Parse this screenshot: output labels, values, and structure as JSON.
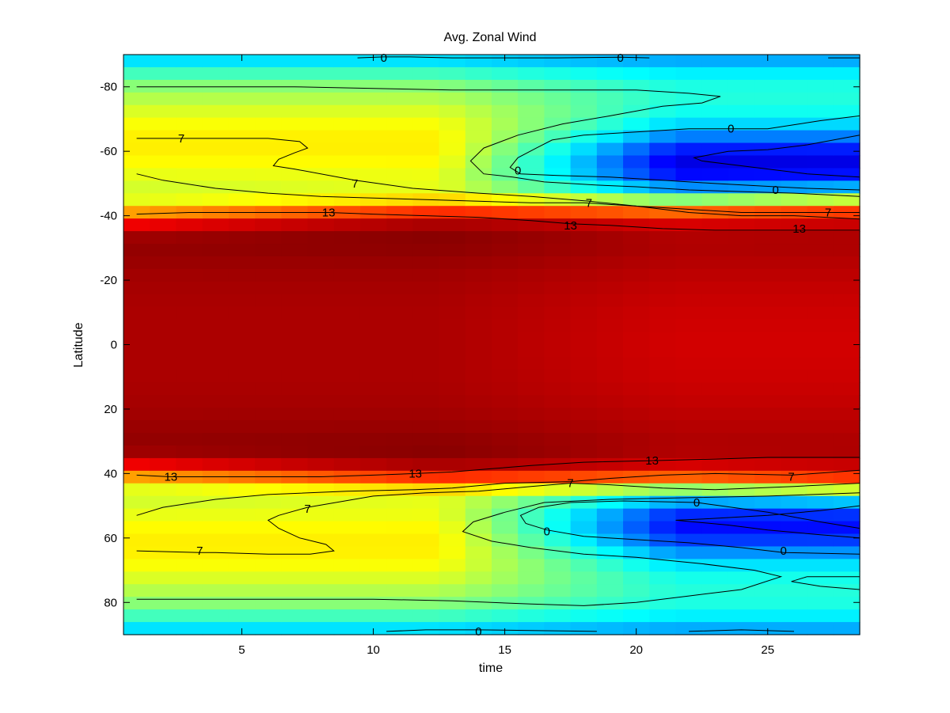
{
  "chart_data": {
    "type": "heatmap",
    "title": "Avg. Zonal Wind",
    "xlabel": "time",
    "ylabel": "Latitude",
    "xlim": [
      0.5,
      28.5
    ],
    "ylim": [
      -90,
      90
    ],
    "y_axis_reversed": true,
    "x_ticks": [
      5,
      10,
      15,
      20,
      25
    ],
    "y_ticks": [
      -80,
      -60,
      -40,
      -20,
      0,
      20,
      40,
      60,
      80
    ],
    "grid": false,
    "colormap": "jet",
    "color_range": [
      -12,
      20
    ],
    "contour_levels": [
      0,
      7,
      13
    ],
    "contour_labels": [
      {
        "text": "0",
        "x": 10.4,
        "y": -89
      },
      {
        "text": "0",
        "x": 19.4,
        "y": -89
      },
      {
        "text": "0",
        "x": 23.6,
        "y": -67
      },
      {
        "text": "0",
        "x": 15.5,
        "y": -54
      },
      {
        "text": "0",
        "x": 25.3,
        "y": -48
      },
      {
        "text": "7",
        "x": 2.7,
        "y": -64
      },
      {
        "text": "7",
        "x": 9.3,
        "y": -50
      },
      {
        "text": "7",
        "x": 18.2,
        "y": -44
      },
      {
        "text": "7",
        "x": 27.3,
        "y": -41
      },
      {
        "text": "13",
        "x": 8.3,
        "y": -41
      },
      {
        "text": "13",
        "x": 17.5,
        "y": -37
      },
      {
        "text": "13",
        "x": 26.2,
        "y": -36
      },
      {
        "text": "13",
        "x": 20.6,
        "y": 36
      },
      {
        "text": "13",
        "x": 11.6,
        "y": 40
      },
      {
        "text": "13",
        "x": 2.3,
        "y": 41
      },
      {
        "text": "7",
        "x": 25.9,
        "y": 41
      },
      {
        "text": "7",
        "x": 17.5,
        "y": 43
      },
      {
        "text": "7",
        "x": 7.5,
        "y": 51
      },
      {
        "text": "0",
        "x": 22.3,
        "y": 49
      },
      {
        "text": "0",
        "x": 16.6,
        "y": 58
      },
      {
        "text": "0",
        "x": 25.6,
        "y": 64
      },
      {
        "text": "7",
        "x": 3.4,
        "y": 64
      },
      {
        "text": "0",
        "x": 14.0,
        "y": 89
      }
    ],
    "contour_lines": [
      {
        "level": 0,
        "points": [
          [
            9.4,
            -89
          ],
          [
            10.4,
            -89.3
          ],
          [
            11.4,
            -89.3
          ],
          [
            13,
            -89
          ],
          [
            15,
            -89
          ],
          [
            17,
            -89
          ],
          [
            19.4,
            -89.2
          ],
          [
            20.5,
            -89
          ]
        ]
      },
      {
        "level": 0,
        "points": [
          [
            27.3,
            -89
          ],
          [
            28.5,
            -89
          ]
        ]
      },
      {
        "level": 7,
        "points": [
          [
            1,
            -80
          ],
          [
            4,
            -80
          ],
          [
            7,
            -80
          ],
          [
            10,
            -79.5
          ],
          [
            13,
            -79
          ],
          [
            16,
            -79
          ],
          [
            18,
            -79
          ],
          [
            20,
            -79
          ],
          [
            22,
            -78
          ],
          [
            23.2,
            -77
          ],
          [
            22.5,
            -75
          ],
          [
            21,
            -74
          ],
          [
            19,
            -71
          ],
          [
            17.2,
            -68.5
          ],
          [
            15.5,
            -65
          ],
          [
            14.2,
            -61
          ],
          [
            13.7,
            -57
          ],
          [
            14.2,
            -53
          ],
          [
            15.3,
            -52
          ],
          [
            16.5,
            -50.5
          ],
          [
            18.5,
            -49.5
          ],
          [
            20,
            -49
          ],
          [
            22,
            -48
          ],
          [
            24,
            -47.5
          ],
          [
            26,
            -47
          ],
          [
            28.5,
            -46
          ]
        ]
      },
      {
        "level": 0,
        "points": [
          [
            28.5,
            -71
          ],
          [
            27,
            -69.5
          ],
          [
            25,
            -67
          ],
          [
            23.6,
            -67
          ],
          [
            22,
            -67
          ],
          [
            20,
            -66
          ],
          [
            18,
            -65
          ],
          [
            16.8,
            -63.5
          ],
          [
            16.2,
            -61
          ],
          [
            15.5,
            -58
          ],
          [
            15.2,
            -55
          ],
          [
            15.6,
            -53
          ],
          [
            17,
            -52.5
          ],
          [
            19,
            -52
          ],
          [
            21,
            -51
          ],
          [
            23,
            -50
          ],
          [
            25.3,
            -49
          ],
          [
            26.5,
            -48.5
          ],
          [
            28.5,
            -48
          ]
        ]
      },
      {
        "level": 0,
        "points": [
          [
            28.5,
            -65
          ],
          [
            26.5,
            -62
          ],
          [
            25,
            -60.5
          ],
          [
            23.5,
            -60
          ],
          [
            22.2,
            -58
          ],
          [
            22.5,
            -57
          ],
          [
            23.5,
            -56
          ],
          [
            25,
            -54.5
          ],
          [
            26.5,
            -53
          ],
          [
            28.5,
            -52
          ]
        ]
      },
      {
        "level": 7,
        "points": [
          [
            1,
            -64
          ],
          [
            2.7,
            -64
          ],
          [
            4,
            -64
          ],
          [
            6,
            -64
          ],
          [
            7.2,
            -63
          ],
          [
            7.5,
            -61
          ],
          [
            7,
            -59.5
          ],
          [
            6.4,
            -57.5
          ],
          [
            6.2,
            -55.5
          ],
          [
            7,
            -54.5
          ],
          [
            9.3,
            -51
          ],
          [
            11.5,
            -48.5
          ],
          [
            14,
            -47
          ],
          [
            16,
            -46
          ],
          [
            18.2,
            -44.5
          ],
          [
            20,
            -43
          ],
          [
            22,
            -42
          ],
          [
            24,
            -41
          ],
          [
            27.3,
            -41
          ],
          [
            28.5,
            -41
          ]
        ]
      },
      {
        "level": 7,
        "points": [
          [
            1,
            -53
          ],
          [
            2,
            -51
          ],
          [
            4,
            -48.5
          ],
          [
            6,
            -47
          ],
          [
            8,
            -46
          ],
          [
            10,
            -45.5
          ],
          [
            12,
            -45
          ],
          [
            14,
            -44.5
          ],
          [
            16,
            -44
          ],
          [
            18,
            -44
          ],
          [
            20,
            -43
          ],
          [
            22,
            -41
          ],
          [
            24,
            -40
          ],
          [
            26,
            -40
          ],
          [
            28.5,
            -39
          ]
        ]
      },
      {
        "level": 13,
        "points": [
          [
            1,
            -40.5
          ],
          [
            3,
            -41
          ],
          [
            5,
            -41
          ],
          [
            8.3,
            -41
          ],
          [
            10,
            -40.5
          ],
          [
            12,
            -40
          ],
          [
            14,
            -39.5
          ],
          [
            16,
            -38.5
          ],
          [
            17.5,
            -37.5
          ],
          [
            19,
            -37
          ],
          [
            21,
            -36
          ],
          [
            23,
            -35.5
          ],
          [
            26.2,
            -35.5
          ],
          [
            28.5,
            -35.5
          ]
        ]
      },
      {
        "level": 13,
        "points": [
          [
            1,
            40.5
          ],
          [
            2.3,
            41
          ],
          [
            5,
            41
          ],
          [
            8,
            41
          ],
          [
            10,
            40.5
          ],
          [
            11.6,
            40
          ],
          [
            13,
            39.5
          ],
          [
            14.5,
            38.5
          ],
          [
            16,
            37.5
          ],
          [
            18,
            36.5
          ],
          [
            20.6,
            36
          ],
          [
            23,
            35.5
          ],
          [
            25,
            35
          ],
          [
            28.5,
            35
          ]
        ]
      },
      {
        "level": 7,
        "points": [
          [
            1,
            53
          ],
          [
            2,
            50.5
          ],
          [
            4,
            48
          ],
          [
            6,
            46.5
          ],
          [
            9,
            45.5
          ],
          [
            11.6,
            45
          ],
          [
            13,
            44.5
          ],
          [
            15,
            43
          ],
          [
            17.5,
            42.5
          ],
          [
            19,
            41.5
          ],
          [
            21,
            40.5
          ],
          [
            23,
            40
          ],
          [
            25.9,
            40.5
          ],
          [
            28.5,
            39
          ]
        ]
      },
      {
        "level": 7,
        "points": [
          [
            28.5,
            43
          ],
          [
            26,
            44
          ],
          [
            23,
            45
          ],
          [
            21,
            44.5
          ],
          [
            19,
            43.5
          ],
          [
            17.5,
            43
          ],
          [
            16,
            44
          ],
          [
            14,
            45.5
          ],
          [
            12,
            46
          ],
          [
            10,
            47
          ],
          [
            7.5,
            50.5
          ],
          [
            6.4,
            53
          ],
          [
            6,
            54.5
          ],
          [
            6.4,
            57
          ],
          [
            7.2,
            60
          ],
          [
            8.2,
            62
          ],
          [
            8.5,
            64
          ],
          [
            7.6,
            65
          ],
          [
            6,
            65
          ],
          [
            4,
            64.5
          ],
          [
            3.4,
            64.5
          ],
          [
            1,
            64
          ]
        ]
      },
      {
        "level": 7,
        "points": [
          [
            1,
            79
          ],
          [
            4,
            79
          ],
          [
            7,
            79
          ],
          [
            10,
            79
          ],
          [
            13,
            79.5
          ],
          [
            16,
            80.5
          ],
          [
            18,
            81
          ],
          [
            20,
            80
          ],
          [
            22,
            78
          ],
          [
            24,
            76
          ],
          [
            25.5,
            72
          ],
          [
            24.5,
            70
          ],
          [
            22.5,
            68
          ],
          [
            20,
            66
          ],
          [
            18,
            65
          ],
          [
            16,
            63
          ],
          [
            14.5,
            61
          ],
          [
            13.4,
            58
          ],
          [
            13.8,
            55
          ],
          [
            15,
            52
          ],
          [
            16.5,
            49
          ],
          [
            19,
            48
          ],
          [
            22,
            47.5
          ],
          [
            25,
            47
          ],
          [
            28.5,
            46
          ]
        ]
      },
      {
        "level": 0,
        "points": [
          [
            28.5,
            57
          ],
          [
            27,
            55
          ],
          [
            25,
            52
          ],
          [
            22.3,
            49
          ],
          [
            19.5,
            48.5
          ],
          [
            17.5,
            49
          ],
          [
            16.3,
            50.5
          ],
          [
            15.6,
            53
          ],
          [
            15.8,
            55.5
          ],
          [
            16.6,
            57.5
          ],
          [
            18,
            59.5
          ],
          [
            20,
            60.5
          ],
          [
            22,
            61.5
          ],
          [
            24,
            63
          ],
          [
            25.6,
            64.5
          ],
          [
            28.5,
            65
          ]
        ]
      },
      {
        "level": 0,
        "points": [
          [
            28.5,
            50
          ],
          [
            27,
            51.5
          ],
          [
            25,
            53
          ],
          [
            22.8,
            54
          ],
          [
            21.5,
            54.5
          ],
          [
            23.5,
            56
          ],
          [
            25,
            57.5
          ],
          [
            27,
            59
          ],
          [
            28.5,
            60
          ]
        ]
      },
      {
        "level": 0,
        "points": [
          [
            28.5,
            72
          ],
          [
            26.5,
            72
          ],
          [
            25.9,
            73.5
          ],
          [
            27,
            75
          ],
          [
            28.5,
            76
          ]
        ]
      },
      {
        "level": 0,
        "points": [
          [
            10.5,
            89
          ],
          [
            12,
            88.5
          ],
          [
            14,
            88.5
          ],
          [
            16,
            88.7
          ],
          [
            18.5,
            89
          ]
        ]
      },
      {
        "level": 0,
        "points": [
          [
            22,
            89
          ],
          [
            24,
            88.5
          ],
          [
            26,
            89
          ]
        ]
      }
    ]
  }
}
